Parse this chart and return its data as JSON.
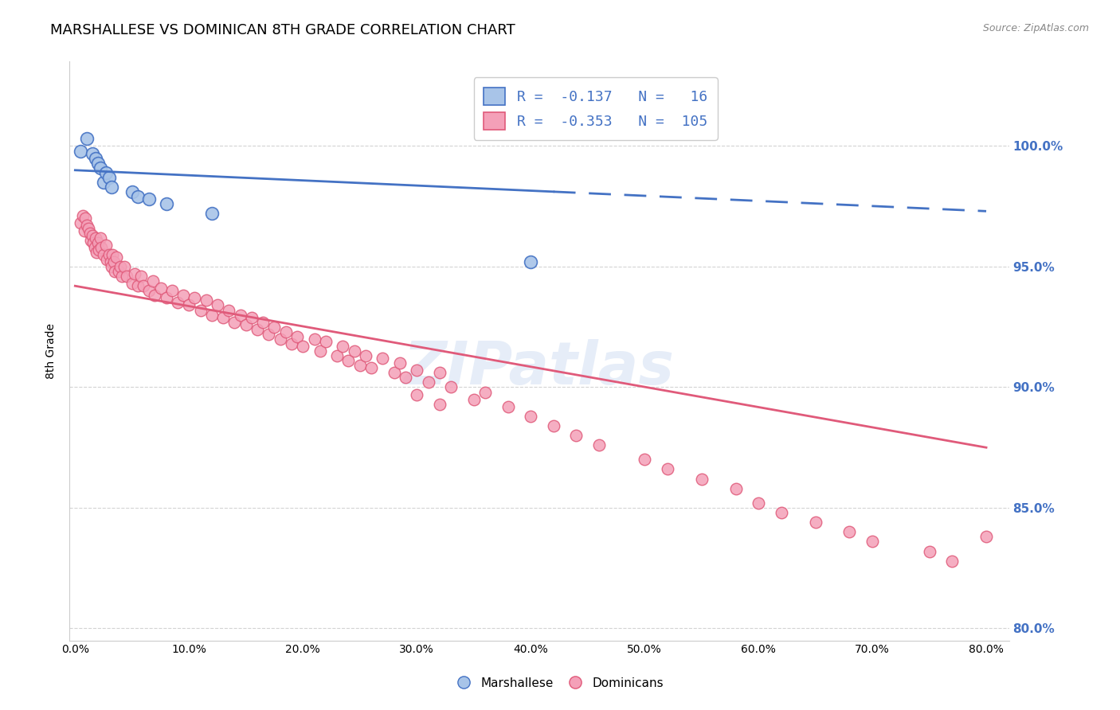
{
  "title": "MARSHALLESE VS DOMINICAN 8TH GRADE CORRELATION CHART",
  "source": "Source: ZipAtlas.com",
  "ylabel_left": "8th Grade",
  "x_tick_labels": [
    "0.0%",
    "10.0%",
    "20.0%",
    "30.0%",
    "40.0%",
    "50.0%",
    "60.0%",
    "70.0%",
    "80.0%"
  ],
  "x_tick_values": [
    0.0,
    0.1,
    0.2,
    0.3,
    0.4,
    0.5,
    0.6,
    0.7,
    0.8
  ],
  "y_tick_labels": [
    "80.0%",
    "85.0%",
    "90.0%",
    "95.0%",
    "100.0%"
  ],
  "y_tick_values": [
    0.8,
    0.85,
    0.9,
    0.95,
    1.0
  ],
  "xlim": [
    -0.005,
    0.82
  ],
  "ylim": [
    0.795,
    1.035
  ],
  "blue_R": -0.137,
  "blue_N": 16,
  "pink_R": -0.353,
  "pink_N": 105,
  "blue_scatter_x": [
    0.005,
    0.01,
    0.015,
    0.018,
    0.02,
    0.022,
    0.025,
    0.027,
    0.03,
    0.032,
    0.05,
    0.055,
    0.065,
    0.08,
    0.12,
    0.4
  ],
  "blue_scatter_y": [
    0.998,
    1.003,
    0.997,
    0.995,
    0.993,
    0.991,
    0.985,
    0.989,
    0.987,
    0.983,
    0.981,
    0.979,
    0.978,
    0.976,
    0.972,
    0.952
  ],
  "pink_scatter_x": [
    0.005,
    0.007,
    0.008,
    0.009,
    0.01,
    0.012,
    0.013,
    0.014,
    0.015,
    0.016,
    0.017,
    0.018,
    0.019,
    0.02,
    0.021,
    0.022,
    0.023,
    0.025,
    0.027,
    0.028,
    0.03,
    0.031,
    0.032,
    0.033,
    0.034,
    0.035,
    0.036,
    0.038,
    0.04,
    0.041,
    0.043,
    0.045,
    0.05,
    0.052,
    0.055,
    0.058,
    0.06,
    0.065,
    0.068,
    0.07,
    0.075,
    0.08,
    0.085,
    0.09,
    0.095,
    0.1,
    0.105,
    0.11,
    0.115,
    0.12,
    0.125,
    0.13,
    0.135,
    0.14,
    0.145,
    0.15,
    0.155,
    0.16,
    0.165,
    0.17,
    0.175,
    0.18,
    0.185,
    0.19,
    0.195,
    0.2,
    0.21,
    0.215,
    0.22,
    0.23,
    0.235,
    0.24,
    0.245,
    0.25,
    0.255,
    0.26,
    0.27,
    0.28,
    0.285,
    0.29,
    0.3,
    0.31,
    0.32,
    0.33,
    0.35,
    0.36,
    0.38,
    0.4,
    0.42,
    0.44,
    0.46,
    0.5,
    0.52,
    0.55,
    0.58,
    0.6,
    0.62,
    0.65,
    0.68,
    0.7,
    0.75,
    0.77,
    0.8,
    0.3,
    0.32
  ],
  "pink_scatter_y": [
    0.968,
    0.971,
    0.965,
    0.97,
    0.967,
    0.966,
    0.964,
    0.961,
    0.963,
    0.96,
    0.958,
    0.962,
    0.956,
    0.96,
    0.957,
    0.962,
    0.958,
    0.955,
    0.959,
    0.953,
    0.955,
    0.952,
    0.95,
    0.955,
    0.952,
    0.948,
    0.954,
    0.948,
    0.95,
    0.946,
    0.95,
    0.946,
    0.943,
    0.947,
    0.942,
    0.946,
    0.942,
    0.94,
    0.944,
    0.938,
    0.941,
    0.937,
    0.94,
    0.935,
    0.938,
    0.934,
    0.937,
    0.932,
    0.936,
    0.93,
    0.934,
    0.929,
    0.932,
    0.927,
    0.93,
    0.926,
    0.929,
    0.924,
    0.927,
    0.922,
    0.925,
    0.92,
    0.923,
    0.918,
    0.921,
    0.917,
    0.92,
    0.915,
    0.919,
    0.913,
    0.917,
    0.911,
    0.915,
    0.909,
    0.913,
    0.908,
    0.912,
    0.906,
    0.91,
    0.904,
    0.907,
    0.902,
    0.906,
    0.9,
    0.895,
    0.898,
    0.892,
    0.888,
    0.884,
    0.88,
    0.876,
    0.87,
    0.866,
    0.862,
    0.858,
    0.852,
    0.848,
    0.844,
    0.84,
    0.836,
    0.832,
    0.828,
    0.838,
    0.897,
    0.893
  ],
  "blue_line_color": "#4472c4",
  "pink_line_color": "#e05a7a",
  "blue_scatter_facecolor": "#a8c4e8",
  "pink_scatter_facecolor": "#f4a0b8",
  "legend_blue_text_R": "R = ",
  "legend_blue_val": "-0.137",
  "legend_blue_N": "N = ",
  "legend_blue_nval": "16",
  "legend_pink_text_R": "R = ",
  "legend_pink_val": "-0.353",
  "legend_pink_N": "N = ",
  "legend_pink_nval": "105",
  "watermark": "ZIPatlas",
  "legend_bottom_blue": "Marshallese",
  "legend_bottom_pink": "Dominicans",
  "blue_line_x0": 0.0,
  "blue_line_x1": 0.8,
  "blue_line_y0": 0.99,
  "blue_line_y1": 0.973,
  "blue_line_solid_end": 0.42,
  "pink_line_x0": 0.0,
  "pink_line_x1": 0.8,
  "pink_line_y0": 0.942,
  "pink_line_y1": 0.875,
  "title_fontsize": 13,
  "axis_label_fontsize": 10,
  "tick_fontsize": 10,
  "right_tick_color": "#4472c4",
  "grid_color": "#d3d3d3",
  "background_color": "#ffffff"
}
